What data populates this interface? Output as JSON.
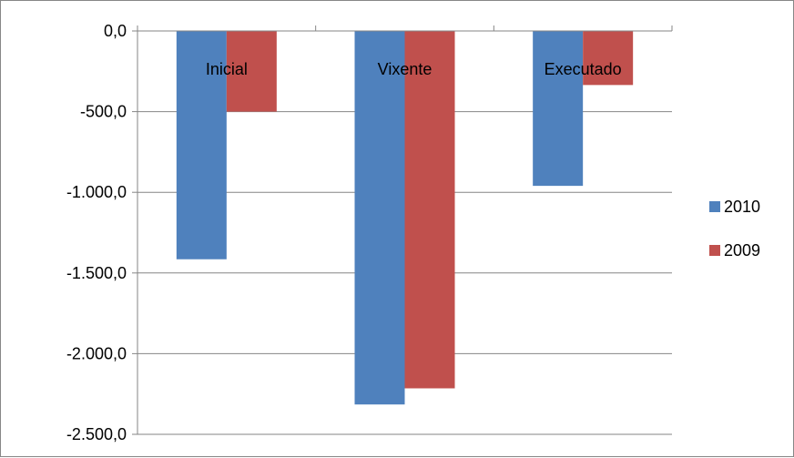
{
  "chart_data": {
    "type": "bar",
    "categories": [
      "Inicial",
      "Vixente",
      "Executado"
    ],
    "series": [
      {
        "name": "2010",
        "values": [
          -1415,
          -2315,
          -960
        ],
        "color": "#4F81BD"
      },
      {
        "name": "2009",
        "values": [
          -500,
          -2215,
          -335
        ],
        "color": "#C0504D"
      }
    ],
    "ylim": [
      -2500,
      0
    ],
    "yticks": [
      0,
      -500,
      -1000,
      -1500,
      -2000,
      -2500
    ],
    "ytick_labels": [
      "0,0",
      "-500,0",
      "-1.000,0",
      "-1.500,0",
      "-2.000,0",
      "-2.500,0"
    ],
    "grid": true,
    "legend_position": "right",
    "title": "",
    "xlabel": "",
    "ylabel": ""
  }
}
